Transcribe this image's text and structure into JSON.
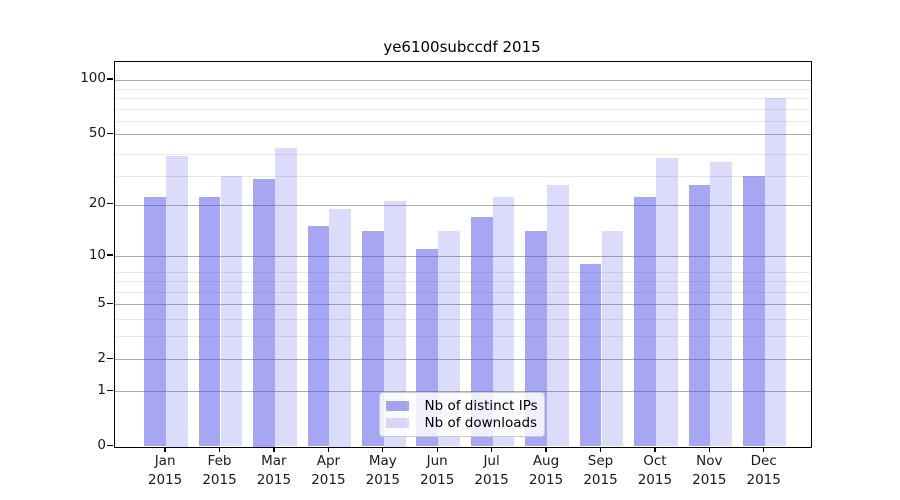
{
  "title": "ye6100subccdf 2015",
  "chart_data": {
    "type": "bar",
    "title": "ye6100subccdf 2015",
    "categories": [
      "Jan 2015",
      "Feb 2015",
      "Mar 2015",
      "Apr 2015",
      "May 2015",
      "Jun 2015",
      "Jul 2015",
      "Aug 2015",
      "Sep 2015",
      "Oct 2015",
      "Nov 2015",
      "Dec 2015"
    ],
    "series": [
      {
        "name": "Nb of distinct IPs",
        "color": "rgba(77,77,230,0.5)",
        "values": [
          22,
          22,
          28,
          15,
          14,
          11,
          17,
          14,
          9,
          22,
          26,
          29
        ]
      },
      {
        "name": "Nb of downloads",
        "color": "rgba(77,77,230,0.2)",
        "values": [
          38,
          29,
          42,
          19,
          21,
          14,
          22,
          26,
          14,
          37,
          35,
          79
        ]
      }
    ],
    "xlabel": "",
    "ylabel": "",
    "yscale": "log1p",
    "ylim": [
      0,
      126
    ],
    "y_ticks": [
      0,
      1,
      2,
      5,
      10,
      20,
      50,
      100
    ],
    "y_minor_ticks": [
      3,
      4,
      6,
      7,
      8,
      29,
      39,
      59,
      69,
      79,
      89
    ],
    "grid": true,
    "grid_major_color": "#ababab",
    "grid_minor_color": "#e9e9e9",
    "legend_position": "lower center",
    "bar_group_offsets": [
      "left",
      "right"
    ]
  }
}
